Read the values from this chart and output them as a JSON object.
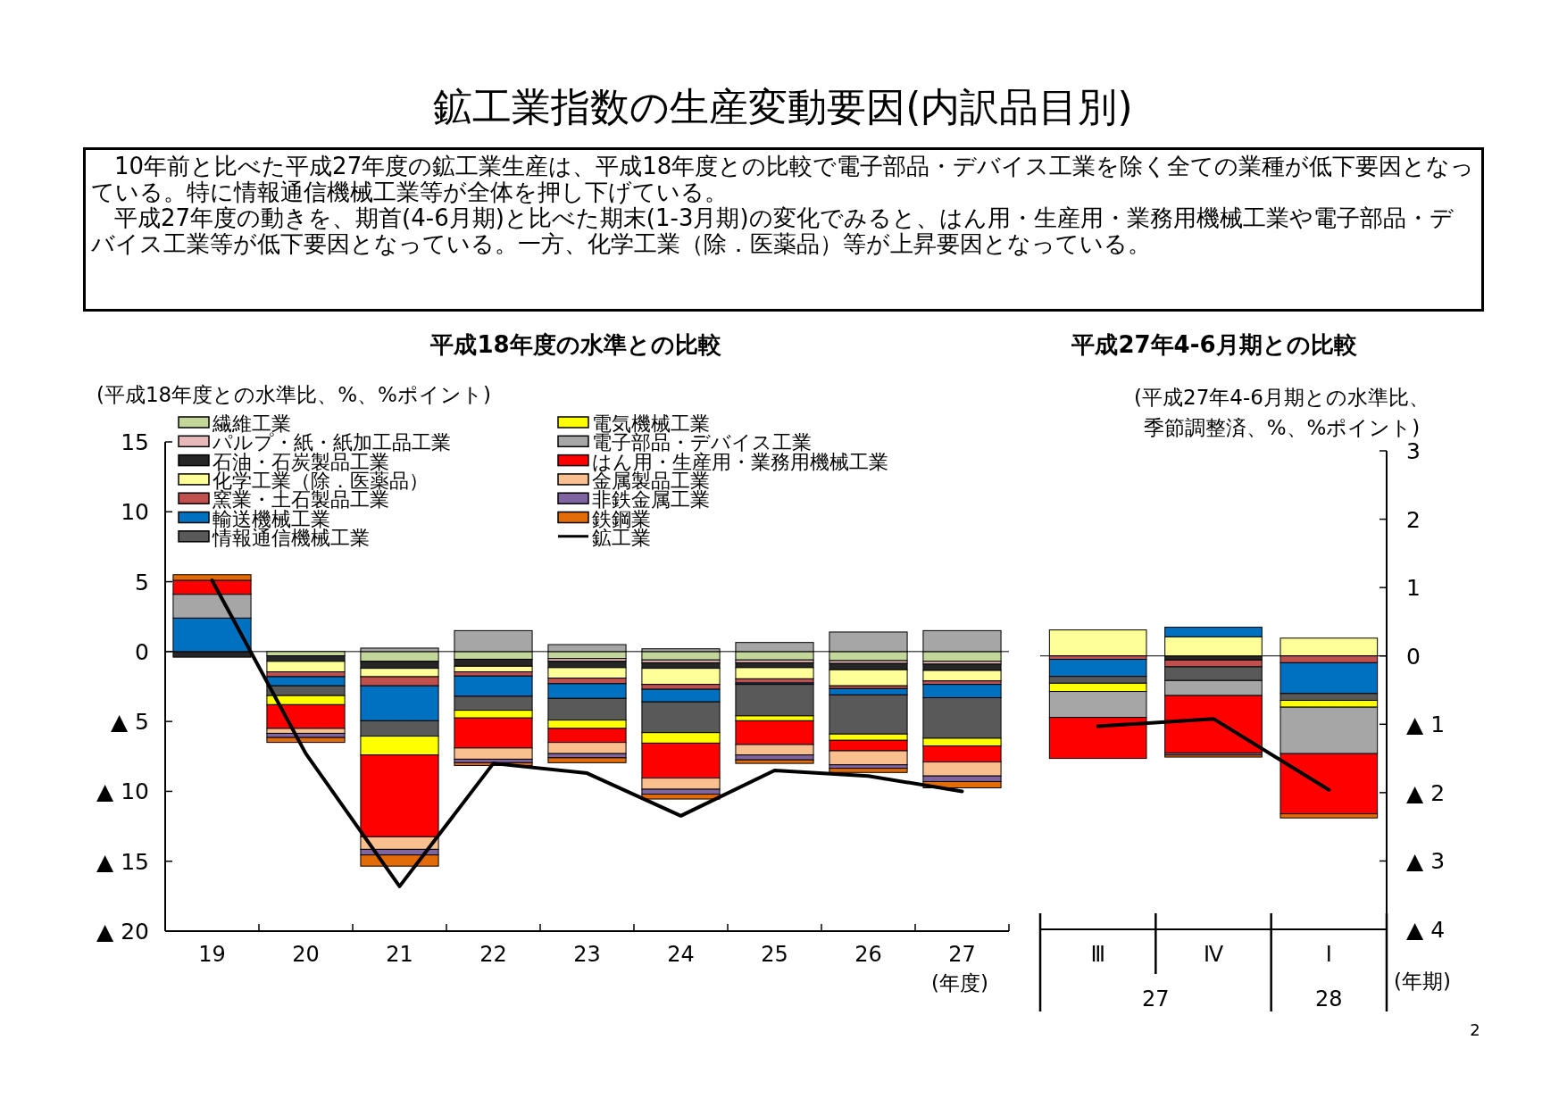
{
  "chart_data": [
    {
      "type": "bar",
      "title": "鉱工業指数の生産変動要因(内訳品目別)",
      "subtitle": "平成18年度の水準との比較",
      "ylabel": "(平成18年度との水準比、%、%ポイント)",
      "xlabel": "(年度)",
      "categories": [
        "19",
        "20",
        "21",
        "22",
        "23",
        "24",
        "25",
        "26",
        "27"
      ],
      "stacked": true,
      "legend": "top left",
      "ylim": [
        -20,
        15
      ],
      "yticks": [
        15,
        10,
        5,
        0,
        {
          "value": -5,
          "label": "▲ 5"
        },
        {
          "value": -10,
          "label": "▲ 10"
        },
        {
          "value": -15,
          "label": "▲ 15"
        },
        {
          "value": -20,
          "label": "▲ 20"
        }
      ],
      "annotations": [
        "10年前と比べた平成27年度の鉱工業生産は、平成18年度との比較で電子部品・デバイス工業を除く全ての業種が低下要因となっている。特に情報通信機械工業等が全体を押し下げている。",
        "平成27年度の動きを、期首(4-6月期)と比べた期末(1-3月期)の変化でみると、はん用・生産用・業務用機械工業や電子部品・デバイス工業等が低下要因となっている。一方、化学工業（除．医薬品）等が上昇要因となっている。",
        "2"
      ],
      "series": [
        {
          "name": "繊維工業",
          "color": "#c4d79b",
          "values": [
            0,
            -0.3,
            -0.7,
            -0.55,
            -0.5,
            -0.6,
            -0.6,
            -0.65,
            -0.7
          ]
        },
        {
          "name": "パルプ・紙・紙加工品工業",
          "color": "#e6b9b8",
          "values": [
            0,
            0,
            0,
            0,
            -0.2,
            -0.2,
            -0.2,
            -0.2,
            -0.2
          ]
        },
        {
          "name": "石油・石炭製品工業",
          "color": "#262626",
          "values": [
            -0.4,
            -0.4,
            -0.5,
            -0.5,
            -0.45,
            -0.4,
            -0.35,
            -0.45,
            -0.45
          ]
        },
        {
          "name": "化学工業（除．医薬品）",
          "color": "#ffff99",
          "values": [
            0,
            -0.75,
            -0.6,
            -0.4,
            -0.75,
            -1.15,
            -0.8,
            -1.15,
            -0.75
          ]
        },
        {
          "name": "窯業・土石製品工業",
          "color": "#c0504d",
          "values": [
            0,
            -0.35,
            -0.65,
            -0.3,
            -0.4,
            -0.35,
            -0.3,
            -0.2,
            -0.25
          ]
        },
        {
          "name": "輸送機械工業",
          "color": "#0070c0",
          "values": [
            2.4,
            -0.65,
            -2.5,
            -1.45,
            -1.05,
            -0.9,
            -0.1,
            -0.45,
            -0.95
          ]
        },
        {
          "name": "情報通信機械工業",
          "color": "#595959",
          "values": [
            0,
            -0.7,
            -1.1,
            -1.0,
            -1.55,
            -2.2,
            -2.25,
            -2.8,
            -2.9
          ]
        },
        {
          "name": "電気機械工業",
          "color": "#ffff00",
          "values": [
            0,
            -0.65,
            -1.35,
            -0.55,
            -0.6,
            -0.75,
            -0.35,
            -0.45,
            -0.55
          ]
        },
        {
          "name": "電子部品・デバイス工業",
          "color": "#a6a6a6",
          "values": [
            1.7,
            0,
            0.25,
            1.5,
            0.5,
            0.2,
            0.65,
            1.4,
            1.5
          ]
        },
        {
          "name": "はん用・生産用・業務用機械工業",
          "color": "#ff0000",
          "values": [
            1.0,
            -1.7,
            -5.85,
            -2.15,
            -1.0,
            -2.5,
            -1.7,
            -0.75,
            -1.15
          ]
        },
        {
          "name": "金属製品工業",
          "color": "#fabf8f",
          "values": [
            0,
            -0.35,
            -0.9,
            -0.8,
            -0.8,
            -0.8,
            -0.75,
            -1.0,
            -1.0
          ]
        },
        {
          "name": "非鉄金属工業",
          "color": "#8064a2",
          "values": [
            0,
            -0.3,
            -0.4,
            -0.25,
            -0.3,
            -0.35,
            -0.35,
            -0.25,
            -0.4
          ]
        },
        {
          "name": "鉄鋼業",
          "color": "#e36c09",
          "values": [
            0.4,
            -0.35,
            -0.8,
            -0.2,
            -0.35,
            -0.35,
            -0.25,
            -0.3,
            -0.45
          ]
        },
        {
          "name": "鉱工業",
          "type": "line",
          "color": "#000000",
          "values": [
            5.1,
            -7.3,
            -16.8,
            -8.0,
            -8.7,
            -11.75,
            -8.5,
            -8.9,
            -10.0
          ]
        }
      ]
    },
    {
      "type": "bar",
      "title": "平成27年4-6月期との比較",
      "y2label": "(平成27年4-6月期との水準比、季節調整済、%、%ポイント)",
      "xlabel": "(年期)",
      "categories": [
        "Ⅲ",
        "Ⅳ",
        "Ⅰ"
      ],
      "stacked": true,
      "y2lim": [
        -4,
        3
      ],
      "y2ticks": [
        3,
        2,
        1,
        0,
        {
          "value": -1,
          "label": "▲ 1"
        },
        {
          "value": -2,
          "label": "▲ 2"
        },
        {
          "value": -3,
          "label": "▲ 3"
        },
        {
          "value": -4,
          "label": "▲ 4"
        }
      ],
      "annotations": [
        "27",
        "28"
      ],
      "series": [
        {
          "axis": "y2",
          "color": "#262626",
          "values": [
            0,
            -0.06,
            null
          ]
        },
        {
          "axis": "y2",
          "color": "#ffff99",
          "values": [
            0.38,
            0.28,
            0.26
          ]
        },
        {
          "axis": "y2",
          "color": "#c0504d",
          "values": [
            -0.05,
            -0.1,
            -0.1
          ]
        },
        {
          "axis": "y2",
          "color": "#0070c0",
          "values": [
            -0.25,
            0.14,
            -0.45
          ]
        },
        {
          "axis": "y2",
          "color": "#595959",
          "values": [
            -0.1,
            -0.2,
            -0.1
          ]
        },
        {
          "axis": "y2",
          "color": "#ffff00",
          "values": [
            -0.12,
            0,
            -0.1
          ]
        },
        {
          "axis": "y2",
          "color": "#a6a6a6",
          "values": [
            -0.38,
            -0.22,
            -0.68
          ]
        },
        {
          "axis": "y2",
          "color": "#ff0000",
          "values": [
            -0.6,
            -0.84,
            -0.88
          ]
        },
        {
          "axis": "y2",
          "color": "#8064a2",
          "values": [
            0,
            -0.03,
            0
          ]
        },
        {
          "axis": "y2",
          "color": "#e36c09",
          "values": [
            0,
            -0.03,
            -0.06
          ]
        },
        {
          "axis": "y2",
          "type": "line",
          "color": "#000000",
          "values": [
            -1.03,
            -0.92,
            -1.96
          ]
        }
      ]
    }
  ]
}
